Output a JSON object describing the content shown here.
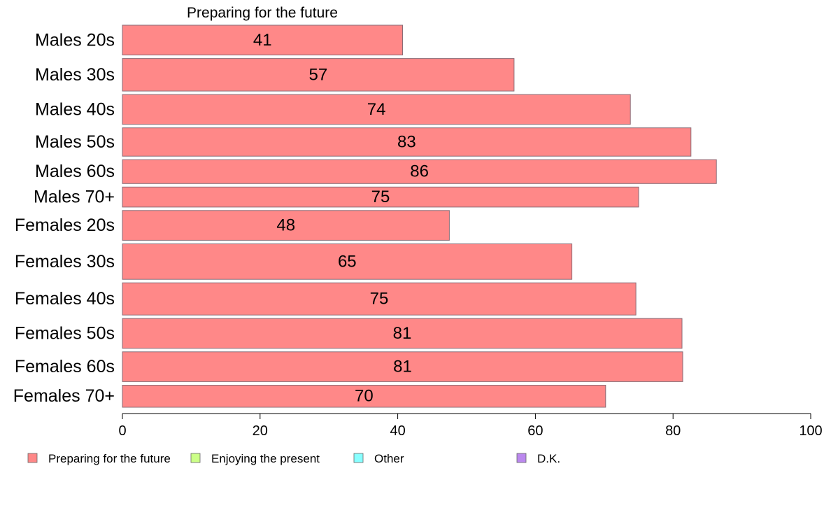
{
  "chart_data": {
    "type": "bar",
    "orientation": "horizontal",
    "title": "Preparing for the future",
    "categories": [
      "Males 20s",
      "Males 30s",
      "Males 40s",
      "Males 50s",
      "Males 60s",
      "Males 70+",
      "Females 20s",
      "Females 30s",
      "Females 40s",
      "Females 50s",
      "Females 60s",
      "Females 70+"
    ],
    "series": [
      {
        "name": "Preparing for the future",
        "values": [
          40.7,
          56.9,
          73.8,
          82.6,
          86.3,
          75.0,
          47.5,
          65.3,
          74.6,
          81.3,
          81.4,
          70.2
        ]
      }
    ],
    "value_labels": [
      "41",
      "57",
      "74",
      "83",
      "86",
      "75",
      "48",
      "65",
      "75",
      "81",
      "81",
      "70"
    ],
    "category_weights": [
      1.0,
      1.09,
      1.0,
      0.95,
      0.8,
      0.67,
      1.0,
      1.19,
      1.08,
      1.0,
      1.0,
      0.74
    ],
    "xlim": [
      0,
      100
    ],
    "xticks": [
      "0",
      "20",
      "40",
      "60",
      "80",
      "100"
    ],
    "xlabel": "",
    "ylabel": "",
    "grid": false,
    "legend_position": "bottom-left",
    "legend": [
      {
        "label": "Preparing for the future",
        "color": "#ff8888"
      },
      {
        "label": "Enjoying the present",
        "color": "#ccff88"
      },
      {
        "label": "Other",
        "color": "#88ffff"
      },
      {
        "label": "D.K.",
        "color": "#bb88ee"
      }
    ],
    "bar_color": "#ff8888",
    "bar_border_color": "#8a6d77"
  }
}
